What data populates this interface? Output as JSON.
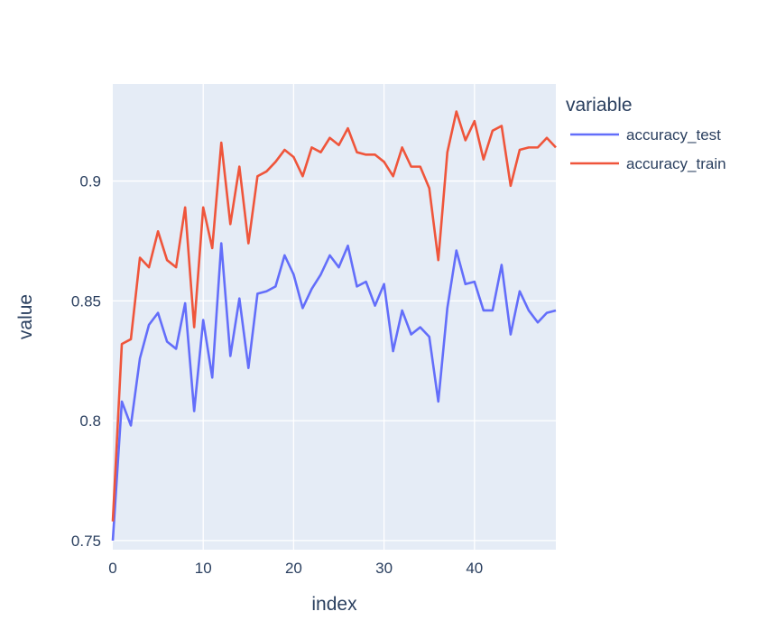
{
  "chart_data": {
    "type": "line",
    "xlabel": "index",
    "ylabel": "value",
    "xlim": [
      0,
      49
    ],
    "ylim": [
      0.7462,
      0.9405
    ],
    "x_ticks": [
      0,
      10,
      20,
      30,
      40
    ],
    "y_ticks": [
      0.75,
      0.8,
      0.85,
      0.9
    ],
    "y_tick_labels": [
      "0.75",
      "0.8",
      "0.85",
      "0.9"
    ],
    "grid": true,
    "legend": {
      "title": "variable",
      "placement": "top-right-outside"
    },
    "colors": {
      "plot_bg": "#E5ECF6",
      "grid": "#FFFFFF",
      "text": "#2a3f5f"
    },
    "x": [
      0,
      1,
      2,
      3,
      4,
      5,
      6,
      7,
      8,
      9,
      10,
      11,
      12,
      13,
      14,
      15,
      16,
      17,
      18,
      19,
      20,
      21,
      22,
      23,
      24,
      25,
      26,
      27,
      28,
      29,
      30,
      31,
      32,
      33,
      34,
      35,
      36,
      37,
      38,
      39,
      40,
      41,
      42,
      43,
      44,
      45,
      46,
      47,
      48,
      49
    ],
    "series": [
      {
        "name": "accuracy_test",
        "color": "#636EFA",
        "values": [
          0.75,
          0.808,
          0.798,
          0.826,
          0.84,
          0.845,
          0.833,
          0.83,
          0.849,
          0.804,
          0.842,
          0.818,
          0.874,
          0.827,
          0.851,
          0.822,
          0.853,
          0.854,
          0.856,
          0.869,
          0.861,
          0.847,
          0.855,
          0.861,
          0.869,
          0.864,
          0.873,
          0.856,
          0.858,
          0.848,
          0.857,
          0.829,
          0.846,
          0.836,
          0.839,
          0.835,
          0.808,
          0.847,
          0.871,
          0.857,
          0.858,
          0.846,
          0.846,
          0.865,
          0.836,
          0.854,
          0.846,
          0.841,
          0.845,
          0.846
        ]
      },
      {
        "name": "accuracy_train",
        "color": "#EF553B",
        "values": [
          0.758,
          0.832,
          0.834,
          0.868,
          0.864,
          0.879,
          0.867,
          0.864,
          0.889,
          0.839,
          0.889,
          0.872,
          0.916,
          0.882,
          0.906,
          0.874,
          0.902,
          0.904,
          0.908,
          0.913,
          0.91,
          0.902,
          0.914,
          0.912,
          0.918,
          0.915,
          0.922,
          0.912,
          0.911,
          0.911,
          0.908,
          0.902,
          0.914,
          0.906,
          0.906,
          0.897,
          0.867,
          0.912,
          0.929,
          0.917,
          0.925,
          0.909,
          0.921,
          0.923,
          0.898,
          0.913,
          0.914,
          0.914,
          0.918,
          0.914
        ]
      }
    ]
  }
}
